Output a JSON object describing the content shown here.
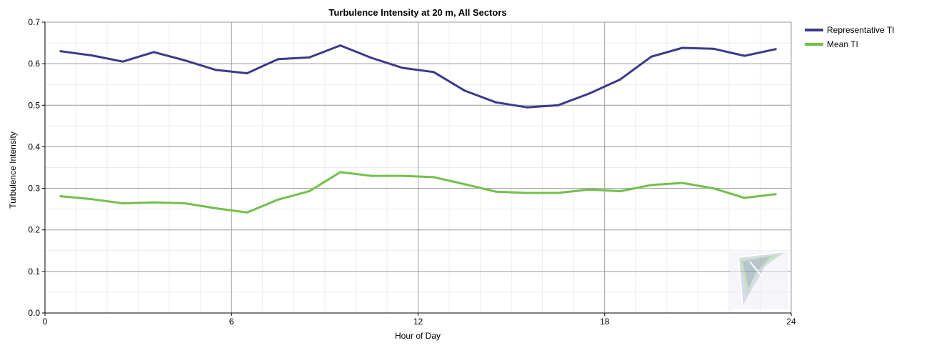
{
  "chart_data": {
    "type": "line",
    "title": "Turbulence Intensity at 20 m, All Sectors",
    "xlabel": "Hour of Day",
    "ylabel": "Turbulence Intensity",
    "xlim": [
      0,
      24
    ],
    "ylim": [
      0.0,
      0.7
    ],
    "x_ticks": [
      0,
      6,
      12,
      18,
      24
    ],
    "x_tick_labels": [
      "0",
      "6",
      "12",
      "18",
      "24"
    ],
    "y_ticks": [
      0.0,
      0.1,
      0.2,
      0.3,
      0.4,
      0.5,
      0.6,
      0.7
    ],
    "y_tick_labels": [
      "0.0",
      "0.1",
      "0.2",
      "0.3",
      "0.4",
      "0.5",
      "0.6",
      "0.7"
    ],
    "grid": true,
    "minor_grid": true,
    "legend_position": "top-right (outside plot)",
    "x": [
      0.5,
      1.5,
      2.5,
      3.5,
      4.5,
      5.5,
      6.5,
      7.5,
      8.5,
      9.5,
      10.5,
      11.5,
      12.5,
      13.5,
      14.5,
      15.5,
      16.5,
      17.5,
      18.5,
      19.5,
      20.5,
      21.5,
      22.5,
      23.5
    ],
    "series": [
      {
        "name": "Representative TI",
        "color": "#3a3a8c",
        "values": [
          0.63,
          0.62,
          0.605,
          0.628,
          0.608,
          0.585,
          0.577,
          0.611,
          0.615,
          0.644,
          0.614,
          0.59,
          0.58,
          0.535,
          0.507,
          0.495,
          0.5,
          0.528,
          0.562,
          0.617,
          0.638,
          0.636,
          0.619,
          0.635
        ]
      },
      {
        "name": "Mean TI",
        "color": "#72c04a",
        "values": [
          0.281,
          0.274,
          0.264,
          0.266,
          0.264,
          0.252,
          0.242,
          0.273,
          0.293,
          0.339,
          0.33,
          0.33,
          0.327,
          0.31,
          0.292,
          0.289,
          0.289,
          0.297,
          0.293,
          0.308,
          0.313,
          0.3,
          0.277,
          0.286
        ]
      }
    ]
  }
}
